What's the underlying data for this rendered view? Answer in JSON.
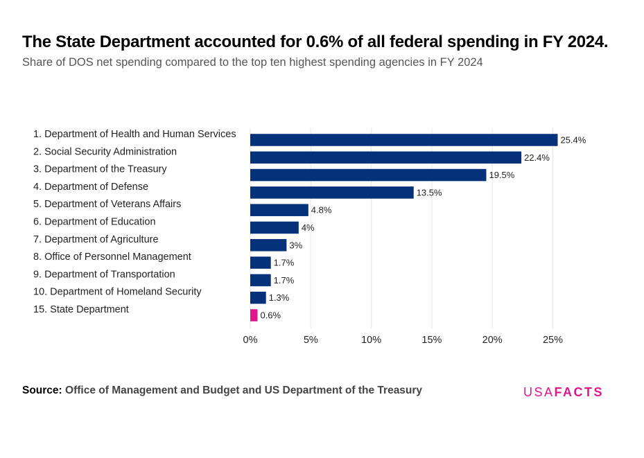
{
  "header": {
    "title": "The State Department accounted for 0.6% of all federal spending in FY 2024.",
    "subtitle": "Share of DOS net spending compared to the top ten highest spending agencies in FY 2024"
  },
  "chart_data": {
    "type": "bar",
    "orientation": "horizontal",
    "categories": [
      "1. Department of Health and Human Services",
      "2. Social Security Administration",
      "3. Department of the Treasury",
      "4. Department of Defense",
      "5. Department of Veterans Affairs",
      "6. Department of Education",
      "7. Department of Agriculture",
      "8. Office of Personnel Management",
      "9. Department of Transportation",
      "10. Department of Homeland Security",
      "15. State Department"
    ],
    "values": [
      25.4,
      22.4,
      19.5,
      13.5,
      4.8,
      4.0,
      3.0,
      1.7,
      1.7,
      1.3,
      0.6
    ],
    "value_labels": [
      "25.4%",
      "22.4%",
      "19.5%",
      "13.5%",
      "4.8%",
      "4%",
      "3%",
      "1.7%",
      "1.7%",
      "1.3%",
      "0.6%"
    ],
    "bar_colors": [
      "#05317a",
      "#05317a",
      "#05317a",
      "#05317a",
      "#05317a",
      "#05317a",
      "#05317a",
      "#05317a",
      "#05317a",
      "#05317a",
      "#e0168a"
    ],
    "xlim": [
      0,
      30
    ],
    "xticks": [
      0,
      5,
      10,
      15,
      20,
      25
    ],
    "xtick_labels": [
      "0%",
      "5%",
      "10%",
      "15%",
      "20%",
      "25%"
    ],
    "grid": true,
    "gridline_color": "#e6e6e6"
  },
  "footer": {
    "source_prefix": "Source:",
    "source_text": "Office of Management and Budget and US Department of the Treasury",
    "logo_part1": "USA",
    "logo_part2": "FACTS",
    "logo_color": "#e0168a"
  }
}
